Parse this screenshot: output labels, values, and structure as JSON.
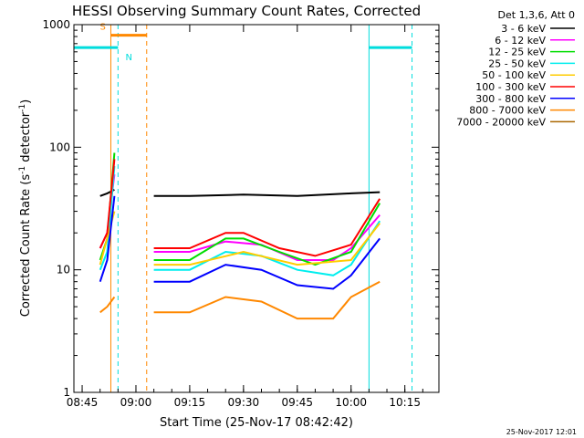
{
  "chart_data": {
    "type": "line",
    "title": "HESSI Observing Summary Count Rates, Corrected",
    "xlabel": "Start Time (25-Nov-17 08:42:42)",
    "ylabel_main": "Corrected Count Rate (s",
    "ylabel_sup1": "-1",
    "ylabel_mid": " detector",
    "ylabel_sup2": "-1",
    "ylabel_end": ")",
    "yscale": "log",
    "ylim": [
      1,
      1000
    ],
    "xlim": [
      "08:42:42",
      "10:24:30"
    ],
    "xtick_labels": [
      "08:45",
      "09:00",
      "09:15",
      "09:30",
      "09:45",
      "10:00",
      "10:15"
    ],
    "ytick_labels": [
      "1",
      "10",
      "100",
      "1000"
    ],
    "legend_title": "Det 1,3,6, Att 0",
    "legend_placement": "right",
    "footer_timestamp": "25-Nov-2017 12:01",
    "grid": false,
    "series": [
      {
        "name": "3 - 6 keV",
        "color": "#000000",
        "segments": [
          {
            "x": [
              "08:50",
              "08:52",
              "08:54"
            ],
            "y": [
              40,
              42,
              45
            ]
          },
          {
            "x": [
              "09:05",
              "09:15",
              "09:30",
              "09:45",
              "10:00",
              "10:08"
            ],
            "y": [
              40,
              40,
              41,
              40,
              42,
              43
            ]
          }
        ]
      },
      {
        "name": "6 - 12 keV",
        "color": "#ff00ff",
        "segments": [
          {
            "x": [
              "08:50",
              "08:52",
              "08:54"
            ],
            "y": [
              15,
              20,
              60
            ]
          },
          {
            "x": [
              "09:05",
              "09:15",
              "09:25",
              "09:35",
              "09:45",
              "09:55",
              "10:00",
              "10:08"
            ],
            "y": [
              14,
              14,
              17,
              16,
              12,
              12,
              15,
              28
            ]
          }
        ]
      },
      {
        "name": "12 - 25 keV",
        "color": "#00dd00",
        "segments": [
          {
            "x": [
              "08:50",
              "08:52",
              "08:54"
            ],
            "y": [
              12,
              18,
              90
            ]
          },
          {
            "x": [
              "09:05",
              "09:15",
              "09:25",
              "09:30",
              "09:40",
              "09:50",
              "10:00",
              "10:08"
            ],
            "y": [
              12,
              12,
              18,
              18,
              14,
              11,
              14,
              35
            ]
          }
        ]
      },
      {
        "name": "25 - 50 keV",
        "color": "#00eeee",
        "segments": [
          {
            "x": [
              "08:50",
              "08:52",
              "08:54"
            ],
            "y": [
              10,
              14,
              70
            ]
          },
          {
            "x": [
              "09:05",
              "09:15",
              "09:25",
              "09:35",
              "09:45",
              "09:55",
              "10:00",
              "10:08"
            ],
            "y": [
              10,
              10,
              14,
              13,
              10,
              9,
              11,
              25
            ]
          }
        ]
      },
      {
        "name": "50 - 100 keV",
        "color": "#ffcc00",
        "segments": [
          {
            "x": [
              "08:50",
              "08:54"
            ],
            "y": [
              11,
              30
            ]
          },
          {
            "x": [
              "09:05",
              "09:15",
              "09:30",
              "09:45",
              "10:00",
              "10:08"
            ],
            "y": [
              11,
              11,
              14,
              11,
              12,
              24
            ]
          }
        ]
      },
      {
        "name": "100 - 300 keV",
        "color": "#ff0000",
        "segments": [
          {
            "x": [
              "08:50",
              "08:52",
              "08:54"
            ],
            "y": [
              15,
              20,
              80
            ]
          },
          {
            "x": [
              "09:05",
              "09:15",
              "09:25",
              "09:30",
              "09:40",
              "09:50",
              "10:00",
              "10:08"
            ],
            "y": [
              15,
              15,
              20,
              20,
              15,
              13,
              16,
              38
            ]
          }
        ]
      },
      {
        "name": "300 - 800 keV",
        "color": "#0000ff",
        "segments": [
          {
            "x": [
              "08:50",
              "08:52",
              "08:54"
            ],
            "y": [
              8,
              12,
              40
            ]
          },
          {
            "x": [
              "09:05",
              "09:15",
              "09:25",
              "09:35",
              "09:45",
              "09:55",
              "10:00",
              "10:08"
            ],
            "y": [
              8,
              8,
              11,
              10,
              7.5,
              7,
              9,
              18
            ]
          }
        ]
      },
      {
        "name": "800 - 7000 keV",
        "color": "#ff8800",
        "segments": [
          {
            "x": [
              "08:50",
              "08:52",
              "08:54"
            ],
            "y": [
              4.5,
              5,
              6
            ]
          },
          {
            "x": [
              "09:05",
              "09:15",
              "09:25",
              "09:35",
              "09:45",
              "09:55",
              "10:00",
              "10:08"
            ],
            "y": [
              4.5,
              4.5,
              6,
              5.5,
              4,
              4,
              6,
              8
            ]
          }
        ]
      },
      {
        "name": "7000 - 20000 keV",
        "color": "#aa6600",
        "segments": []
      }
    ],
    "annotations": [
      {
        "label": "S",
        "color": "#ff8800",
        "x_start": "08:53",
        "x_end": "09:03",
        "y": 820
      },
      {
        "label": "N",
        "color": "#00dddd",
        "x_start": "08:42:42",
        "x_end": "08:55",
        "y": 650
      },
      {
        "label": "",
        "color": "#00dddd",
        "x_start": "10:05",
        "x_end": "10:17",
        "y": 650
      }
    ],
    "vertical_lines": [
      {
        "x": "08:42:42",
        "color": "#00dddd",
        "style": "solid"
      },
      {
        "x": "08:53",
        "color": "#ff8800",
        "style": "solid"
      },
      {
        "x": "08:55",
        "color": "#00dddd",
        "style": "dashed"
      },
      {
        "x": "09:03",
        "color": "#ff8800",
        "style": "dashed"
      },
      {
        "x": "10:05",
        "color": "#00dddd",
        "style": "solid"
      },
      {
        "x": "10:17",
        "color": "#00dddd",
        "style": "dashed"
      }
    ]
  }
}
